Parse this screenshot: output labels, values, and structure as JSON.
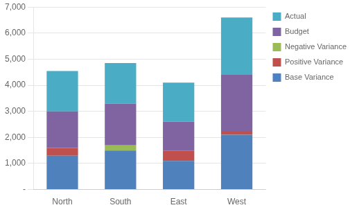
{
  "chart_data": {
    "type": "bar",
    "stacked": true,
    "categories": [
      "North",
      "South",
      "East",
      "West"
    ],
    "series": [
      {
        "name": "Base Variance",
        "color": "#4F81BD",
        "values": [
          1300,
          1500,
          1100,
          2100
        ]
      },
      {
        "name": "Positive Variance",
        "color": "#C0504D",
        "values": [
          300,
          0,
          400,
          150
        ]
      },
      {
        "name": "Negative Variance",
        "color": "#9BBB59",
        "values": [
          0,
          200,
          0,
          0
        ]
      },
      {
        "name": "Budget",
        "color": "#8064A2",
        "values": [
          1400,
          1600,
          1100,
          2150
        ]
      },
      {
        "name": "Actual",
        "color": "#4BACC6",
        "values": [
          1550,
          1550,
          1500,
          2200
        ]
      }
    ],
    "ylim": [
      0,
      7000
    ],
    "yticks": [
      {
        "value": 0,
        "label": "-"
      },
      {
        "value": 1000,
        "label": "1,000"
      },
      {
        "value": 2000,
        "label": "2,000"
      },
      {
        "value": 3000,
        "label": "3,000"
      },
      {
        "value": 4000,
        "label": "4,000"
      },
      {
        "value": 5000,
        "label": "5,000"
      },
      {
        "value": 6000,
        "label": "6,000"
      },
      {
        "value": 7000,
        "label": "7,000"
      }
    ],
    "grid": true,
    "legend": "right"
  }
}
